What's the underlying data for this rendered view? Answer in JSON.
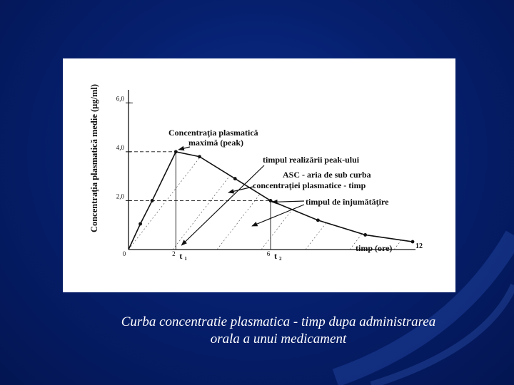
{
  "caption": {
    "line1": "Curba concentratie plasmatica - timp dupa administrarea",
    "line2": "orala a unui medicament"
  },
  "chart_data": {
    "type": "line",
    "ylabel": "Concentraţia plasmatică medie (μg/ml)",
    "xlabel": "timp (ore)",
    "x_ticks": [
      "0",
      "2",
      "6",
      "12"
    ],
    "y_ticks": [
      "2,0",
      "4,0",
      "6,0"
    ],
    "xlim": [
      0,
      12
    ],
    "ylim": [
      0,
      6.3
    ],
    "grid": false,
    "points": [
      {
        "x": 0,
        "y": 0
      },
      {
        "x": 0.5,
        "y": 1.05
      },
      {
        "x": 1,
        "y": 2.0
      },
      {
        "x": 2,
        "y": 4.0
      },
      {
        "x": 3,
        "y": 3.8
      },
      {
        "x": 4.5,
        "y": 2.9
      },
      {
        "x": 6,
        "y": 2.0
      },
      {
        "x": 8,
        "y": 1.2
      },
      {
        "x": 10,
        "y": 0.6
      },
      {
        "x": 12,
        "y": 0.32
      }
    ],
    "peak": {
      "x": 2,
      "y": 4.0
    },
    "half_life": {
      "x": 6,
      "y": 2.0
    },
    "t_labels": {
      "t1": "t",
      "t1_sub": "1",
      "t2": "t",
      "t2_sub": "2"
    },
    "annotations": {
      "peak_line1": "Concentraţia plasmatică",
      "peak_line2": "maximă (peak)",
      "time_peak": "timpul realizării peak-ului",
      "asc_line1": "ASC - aria de sub curba",
      "asc_line2": "concentraţiei plasmatice  - timp",
      "half": "timpul de înjumătăţire"
    },
    "colors": {
      "line": "#111111",
      "caption": "#ffffff"
    }
  }
}
